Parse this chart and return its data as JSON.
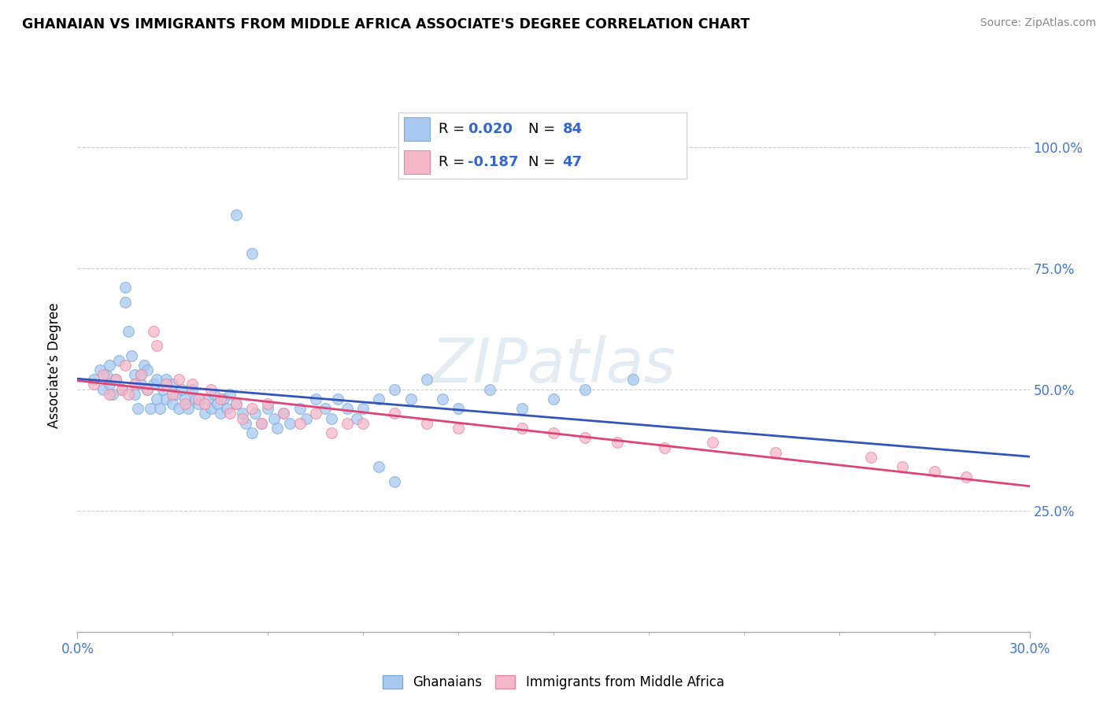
{
  "title": "GHANAIAN VS IMMIGRANTS FROM MIDDLE AFRICA ASSOCIATE'S DEGREE CORRELATION CHART",
  "source": "Source: ZipAtlas.com",
  "ylabel": "Associate’s Degree",
  "xlim": [
    0.0,
    0.3
  ],
  "ylim": [
    0.0,
    1.1
  ],
  "xtick_labels": [
    "0.0%",
    "30.0%"
  ],
  "ytick_positions": [
    0.25,
    0.5,
    0.75,
    1.0
  ],
  "ytick_labels": [
    "25.0%",
    "50.0%",
    "75.0%",
    "100.0%"
  ],
  "blue_color": "#a8c8f0",
  "blue_edge_color": "#7aaed8",
  "pink_color": "#f5b8c8",
  "pink_edge_color": "#e888a8",
  "blue_line_color": "#3355bb",
  "pink_line_color": "#dd4477",
  "blue_R": 0.02,
  "blue_N": 84,
  "pink_R": -0.187,
  "pink_N": 47,
  "watermark": "ZIPatlas",
  "legend1_label": "Ghanaians",
  "legend2_label": "Immigrants from Middle Africa",
  "blue_scatter_x": [
    0.005,
    0.007,
    0.008,
    0.009,
    0.01,
    0.01,
    0.011,
    0.012,
    0.013,
    0.014,
    0.015,
    0.015,
    0.016,
    0.017,
    0.018,
    0.018,
    0.019,
    0.02,
    0.02,
    0.021,
    0.022,
    0.022,
    0.023,
    0.024,
    0.025,
    0.025,
    0.026,
    0.027,
    0.028,
    0.028,
    0.03,
    0.03,
    0.031,
    0.032,
    0.033,
    0.034,
    0.035,
    0.036,
    0.037,
    0.038,
    0.04,
    0.041,
    0.042,
    0.043,
    0.044,
    0.045,
    0.046,
    0.047,
    0.048,
    0.05,
    0.052,
    0.053,
    0.055,
    0.056,
    0.058,
    0.06,
    0.062,
    0.063,
    0.065,
    0.067,
    0.07,
    0.072,
    0.075,
    0.078,
    0.08,
    0.082,
    0.085,
    0.088,
    0.09,
    0.095,
    0.1,
    0.105,
    0.11,
    0.115,
    0.12,
    0.13,
    0.14,
    0.15,
    0.16,
    0.175,
    0.05,
    0.055,
    0.095,
    0.1
  ],
  "blue_scatter_y": [
    0.52,
    0.54,
    0.5,
    0.53,
    0.51,
    0.55,
    0.49,
    0.52,
    0.56,
    0.5,
    0.68,
    0.71,
    0.62,
    0.57,
    0.53,
    0.49,
    0.46,
    0.51,
    0.53,
    0.55,
    0.5,
    0.54,
    0.46,
    0.51,
    0.48,
    0.52,
    0.46,
    0.5,
    0.48,
    0.52,
    0.47,
    0.51,
    0.49,
    0.46,
    0.5,
    0.48,
    0.46,
    0.5,
    0.48,
    0.47,
    0.45,
    0.48,
    0.46,
    0.49,
    0.47,
    0.45,
    0.48,
    0.46,
    0.49,
    0.47,
    0.45,
    0.43,
    0.41,
    0.45,
    0.43,
    0.46,
    0.44,
    0.42,
    0.45,
    0.43,
    0.46,
    0.44,
    0.48,
    0.46,
    0.44,
    0.48,
    0.46,
    0.44,
    0.46,
    0.48,
    0.5,
    0.48,
    0.52,
    0.48,
    0.46,
    0.5,
    0.46,
    0.48,
    0.5,
    0.52,
    0.86,
    0.78,
    0.34,
    0.31
  ],
  "pink_scatter_x": [
    0.005,
    0.008,
    0.01,
    0.012,
    0.014,
    0.015,
    0.016,
    0.018,
    0.02,
    0.022,
    0.024,
    0.025,
    0.028,
    0.03,
    0.032,
    0.034,
    0.036,
    0.038,
    0.04,
    0.042,
    0.045,
    0.048,
    0.05,
    0.052,
    0.055,
    0.058,
    0.06,
    0.065,
    0.07,
    0.075,
    0.08,
    0.085,
    0.09,
    0.1,
    0.11,
    0.12,
    0.14,
    0.15,
    0.16,
    0.17,
    0.185,
    0.2,
    0.22,
    0.25,
    0.26,
    0.27,
    0.28
  ],
  "pink_scatter_y": [
    0.51,
    0.53,
    0.49,
    0.52,
    0.5,
    0.55,
    0.49,
    0.51,
    0.53,
    0.5,
    0.62,
    0.59,
    0.51,
    0.49,
    0.52,
    0.47,
    0.51,
    0.48,
    0.47,
    0.5,
    0.48,
    0.45,
    0.47,
    0.44,
    0.46,
    0.43,
    0.47,
    0.45,
    0.43,
    0.45,
    0.41,
    0.43,
    0.43,
    0.45,
    0.43,
    0.42,
    0.42,
    0.41,
    0.4,
    0.39,
    0.38,
    0.39,
    0.37,
    0.36,
    0.34,
    0.33,
    0.32
  ]
}
